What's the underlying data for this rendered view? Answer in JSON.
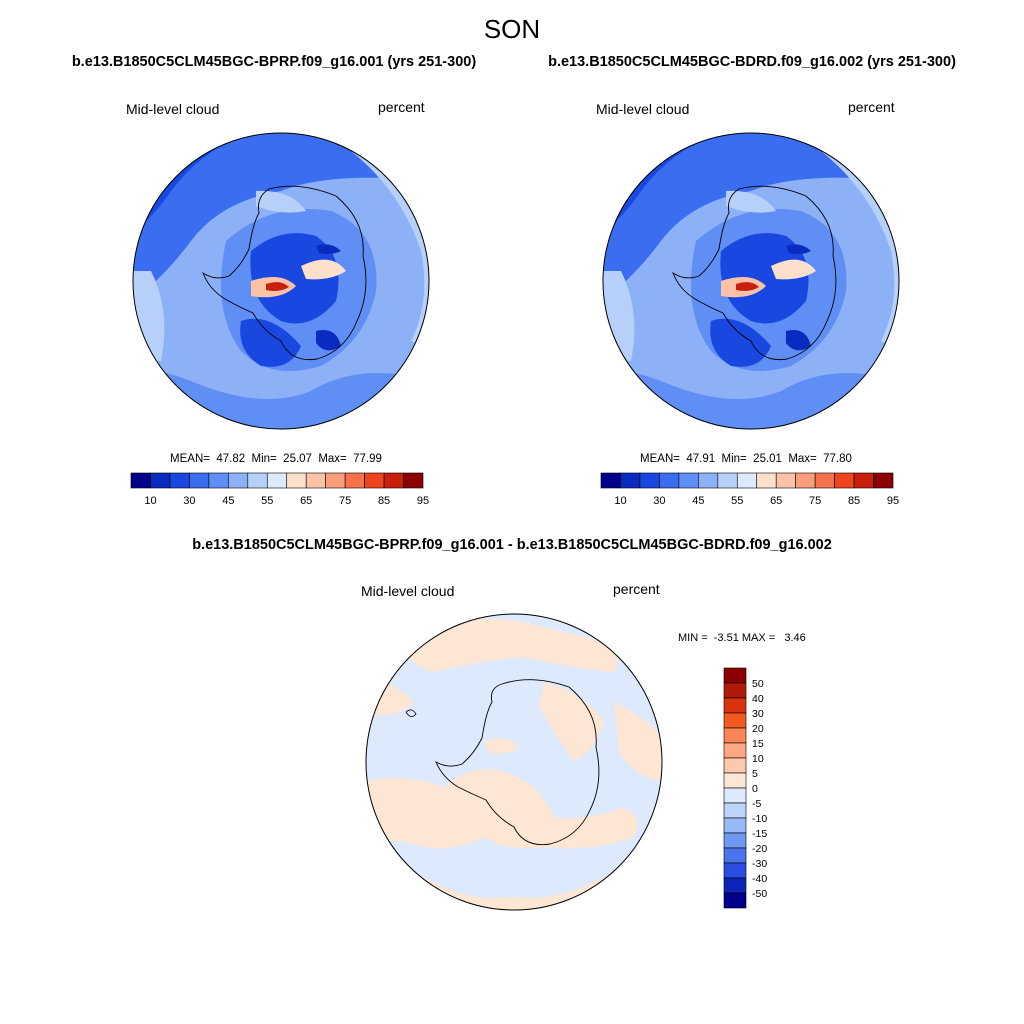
{
  "page": {
    "season": "SON"
  },
  "panels": [
    {
      "title": "b.e13.B1850C5CLM45BGC-BPRP.f09_g16.001 (yrs 251-300)",
      "left_label": "Mid-level cloud",
      "right_label": "percent",
      "stats": "MEAN=  47.82  Min=  25.07  Max=  77.99",
      "colorbar_labels": [
        "10",
        "30",
        "45",
        "55",
        "65",
        "75",
        "85",
        "95"
      ]
    },
    {
      "title": "b.e13.B1850C5CLM45BGC-BDRD.f09_g16.002 (yrs 251-300)",
      "left_label": "Mid-level cloud",
      "right_label": "percent",
      "stats": "MEAN=  47.91  Min=  25.01  Max=  77.80",
      "colorbar_labels": [
        "10",
        "30",
        "45",
        "55",
        "65",
        "75",
        "85",
        "95"
      ]
    }
  ],
  "diff": {
    "title": "b.e13.B1850C5CLM45BGC-BPRP.f09_g16.001 - b.e13.B1850C5CLM45BGC-BDRD.f09_g16.002",
    "left_label": "Mid-level cloud",
    "right_label": "percent",
    "stats": "MIN =  -3.51 MAX =   3.46",
    "colorbar_labels": [
      "50",
      "40",
      "30",
      "20",
      "15",
      "10",
      "5",
      "0",
      "-5",
      "-10",
      "-15",
      "-20",
      "-30",
      "-40",
      "-50"
    ]
  },
  "colors": {
    "main_scale": [
      "#00008b",
      "#0a2bbf",
      "#1848e0",
      "#3b6df0",
      "#5f8ef5",
      "#8cb1f7",
      "#b7d0fa",
      "#dde9fc",
      "#fde0cc",
      "#fcc2a5",
      "#f99e7c",
      "#f6724c",
      "#ee4420",
      "#c8200c",
      "#8b0000"
    ],
    "diff_scale": [
      "#8b0000",
      "#b01a06",
      "#d9330f",
      "#f25a22",
      "#f98456",
      "#fca882",
      "#fdc9ac",
      "#fde7d4",
      "#dde9fc",
      "#bcd3fa",
      "#97b9f7",
      "#6f98f2",
      "#4a74ec",
      "#2a4fe0",
      "#0d24b8",
      "#00008b"
    ]
  }
}
